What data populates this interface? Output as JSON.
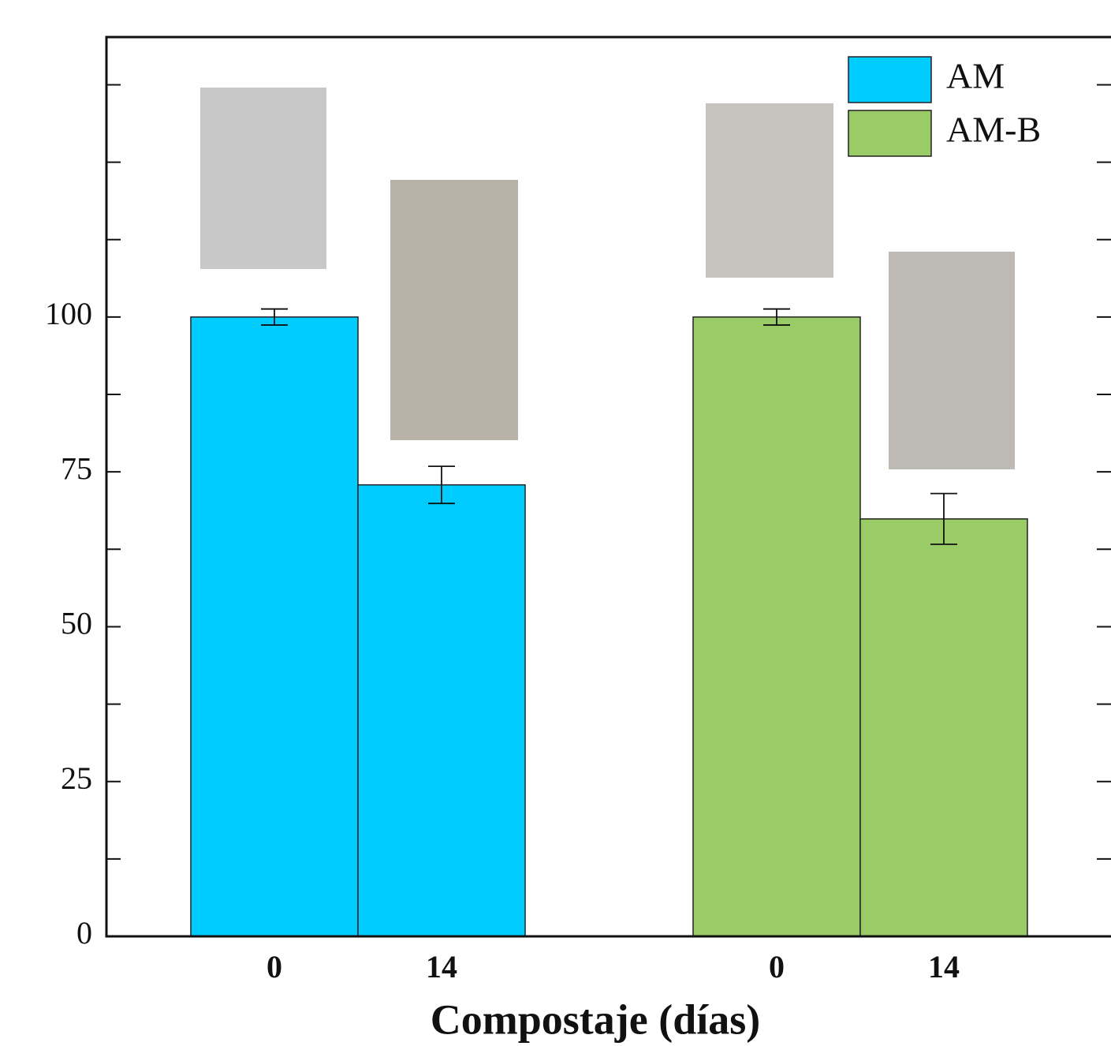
{
  "chart_data": {
    "type": "bar",
    "x_label": "Compostaje (días)",
    "categories": [
      "0",
      "14",
      "0",
      "14"
    ],
    "series": [
      {
        "name": "AM",
        "color": "#00ccff",
        "values": [
          100,
          72.9,
          null,
          null
        ],
        "errors": [
          1.3,
          3,
          null,
          null
        ]
      },
      {
        "name": "AM-B",
        "color": "#99cc66",
        "values": [
          null,
          null,
          100,
          67.4
        ],
        "errors": [
          null,
          null,
          1.3,
          4.1
        ]
      }
    ],
    "ylim": [
      0,
      145.2
    ],
    "yticks": [
      0,
      25,
      50,
      75,
      100
    ],
    "yticks_minor": [
      12.5,
      37.5,
      62.5,
      87.5,
      112.5,
      125,
      137.5
    ],
    "legend": "upper right"
  }
}
